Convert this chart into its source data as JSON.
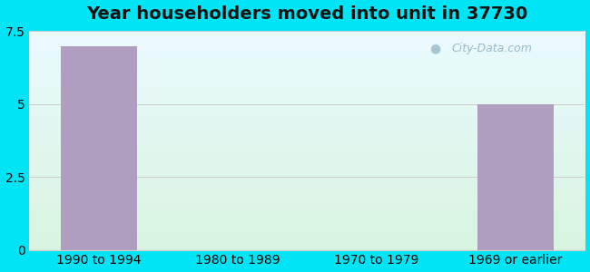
{
  "title": "Year householders moved into unit in 37730",
  "categories": [
    "1990 to 1994",
    "1980 to 1989",
    "1970 to 1979",
    "1969 or earlier"
  ],
  "values": [
    7.0,
    0,
    0,
    5.0
  ],
  "bar_color": "#b09ec0",
  "ylim": [
    0,
    7.5
  ],
  "yticks": [
    0,
    2.5,
    5,
    7.5
  ],
  "bg_outer": "#00e5f5",
  "bg_plot_top": "#eafaff",
  "bg_plot_bottom": "#d8f5e0",
  "grid_color": "#cccccc",
  "title_fontsize": 14,
  "tick_fontsize": 10,
  "watermark": "City-Data.com"
}
